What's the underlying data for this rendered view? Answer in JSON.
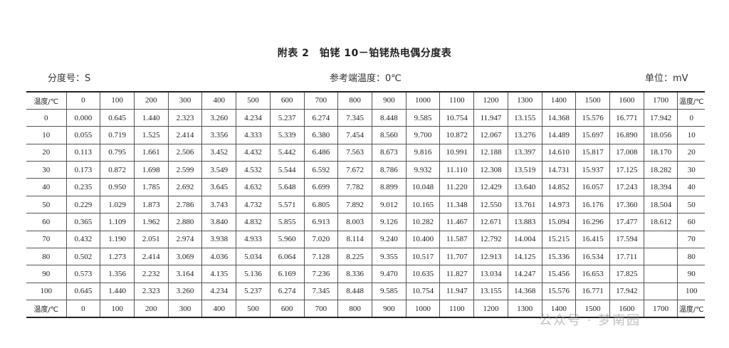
{
  "title": "附表 2　铂铑 10－铂铑热电偶分度表",
  "graduation": "分度号：S",
  "reference": "参考端温度：0℃",
  "unit": "单位：mV",
  "header_label": "温度/℃",
  "columns": [
    "0",
    "100",
    "200",
    "300",
    "400",
    "500",
    "600",
    "700",
    "800",
    "900",
    "1000",
    "1100",
    "1200",
    "1300",
    "1400",
    "1500",
    "1600",
    "1700"
  ],
  "rows": [
    {
      "t": "0",
      "v": [
        "0.000",
        "0.645",
        "1.440",
        "2.323",
        "3.260",
        "4.234",
        "5.237",
        "6.274",
        "7.345",
        "8.448",
        "9.585",
        "10.754",
        "11.947",
        "13.155",
        "14.368",
        "15.576",
        "16.771",
        "17.942"
      ]
    },
    {
      "t": "10",
      "v": [
        "0.055",
        "0.719",
        "1.525",
        "2.414",
        "3.356",
        "4.333",
        "5.339",
        "6.380",
        "7.454",
        "8.560",
        "9.700",
        "10.872",
        "12.067",
        "13.276",
        "14.489",
        "15.697",
        "16.890",
        "18.056"
      ]
    },
    {
      "t": "20",
      "v": [
        "0.113",
        "0.795",
        "1.661",
        "2.506",
        "3.452",
        "4.432",
        "5.442",
        "6.486",
        "7.563",
        "8.673",
        "9.816",
        "10.991",
        "12.188",
        "13.397",
        "14.610",
        "15.817",
        "17.008",
        "18.170"
      ]
    },
    {
      "t": "30",
      "v": [
        "0.173",
        "0.872",
        "1.698",
        "2.599",
        "3.549",
        "4.532",
        "5.544",
        "6.592",
        "7.672",
        "8.786",
        "9.932",
        "11.110",
        "12.308",
        "13.519",
        "14.731",
        "15.937",
        "17.125",
        "18.282"
      ]
    },
    {
      "t": "40",
      "v": [
        "0.235",
        "0.950",
        "1.785",
        "2.692",
        "3.645",
        "4.632",
        "5.648",
        "6.699",
        "7.782",
        "8.899",
        "10.048",
        "11.220",
        "12.429",
        "13.640",
        "14.852",
        "16.057",
        "17.243",
        "18.394"
      ]
    },
    {
      "t": "50",
      "v": [
        "0.229",
        "1.029",
        "1.873",
        "2.786",
        "3.743",
        "4.732",
        "5.571",
        "6.805",
        "7.892",
        "9.012",
        "10.165",
        "11.348",
        "12.550",
        "13.761",
        "14.973",
        "16.176",
        "17.360",
        "18.504"
      ]
    },
    {
      "t": "60",
      "v": [
        "0.365",
        "1.109",
        "1.962",
        "2.880",
        "3.840",
        "4.832",
        "5.855",
        "6.913",
        "8.003",
        "9.126",
        "10.282",
        "11.467",
        "12.671",
        "13.883",
        "15.094",
        "16.296",
        "17.477",
        "18.612"
      ]
    },
    {
      "t": "70",
      "v": [
        "0.432",
        "1.190",
        "2.051",
        "2.974",
        "3.938",
        "4.933",
        "5.960",
        "7.020",
        "8.114",
        "9.240",
        "10.400",
        "11.587",
        "12.792",
        "14.004",
        "15.215",
        "16.415",
        "17.594",
        ""
      ]
    },
    {
      "t": "80",
      "v": [
        "0.502",
        "1.273",
        "2.414",
        "3.069",
        "4.036",
        "5.034",
        "6.064",
        "7.128",
        "8.225",
        "9.355",
        "10.517",
        "11.707",
        "12.913",
        "14.125",
        "15.336",
        "16.534",
        "17.711",
        ""
      ]
    },
    {
      "t": "90",
      "v": [
        "0.573",
        "1.356",
        "2.232",
        "3.164",
        "4.135",
        "5.136",
        "6.169",
        "7.236",
        "8.336",
        "9.470",
        "10.635",
        "11.827",
        "13.034",
        "14.247",
        "15.456",
        "16.653",
        "17.825",
        ""
      ]
    },
    {
      "t": "100",
      "v": [
        "0.645",
        "1.440",
        "2.323",
        "3.260",
        "4.234",
        "5.237",
        "6.274",
        "7.345",
        "8.448",
        "9.585",
        "10.754",
        "11.947",
        "13.155",
        "14.368",
        "15.576",
        "16.771",
        "17.942",
        ""
      ]
    }
  ],
  "watermark": "公众号 · 梦南园"
}
